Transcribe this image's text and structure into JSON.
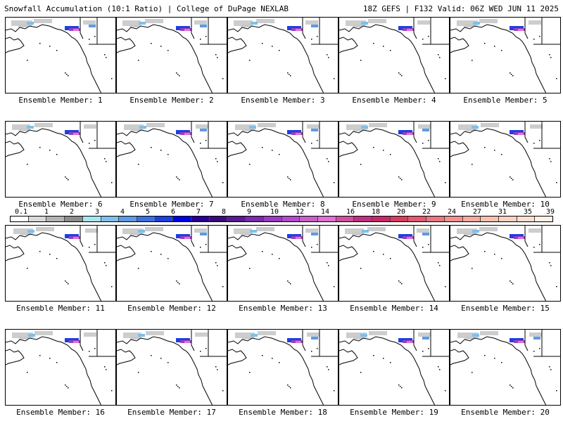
{
  "header": {
    "title_left": "Snowfall Accumulation (10:1 Ratio) | College of DuPage NEXLAB",
    "title_right": "18Z GEFS | F132 Valid: 06Z WED JUN 11 2025"
  },
  "panels": [
    {
      "label": "Ensemble Member: 1"
    },
    {
      "label": "Ensemble Member: 2"
    },
    {
      "label": "Ensemble Member: 3"
    },
    {
      "label": "Ensemble Member: 4"
    },
    {
      "label": "Ensemble Member: 5"
    },
    {
      "label": "Ensemble Member: 6"
    },
    {
      "label": "Ensemble Member: 7"
    },
    {
      "label": "Ensemble Member: 8"
    },
    {
      "label": "Ensemble Member: 9"
    },
    {
      "label": "Ensemble Member: 10"
    },
    {
      "label": "Ensemble Member: 11"
    },
    {
      "label": "Ensemble Member: 12"
    },
    {
      "label": "Ensemble Member: 13"
    },
    {
      "label": "Ensemble Member: 14"
    },
    {
      "label": "Ensemble Member: 15"
    },
    {
      "label": "Ensemble Member: 16"
    },
    {
      "label": "Ensemble Member: 17"
    },
    {
      "label": "Ensemble Member: 18"
    },
    {
      "label": "Ensemble Member: 19"
    },
    {
      "label": "Ensemble Member: 20"
    }
  ],
  "legend": {
    "labels": [
      "0.1",
      "1",
      "2",
      "3",
      "4",
      "5",
      "6",
      "7",
      "8",
      "9",
      "10",
      "12",
      "14",
      "16",
      "18",
      "20",
      "22",
      "24",
      "27",
      "31",
      "35",
      "39"
    ],
    "colors": [
      "#ffffff",
      "#d9d9d9",
      "#b3b3b3",
      "#8c8c8c",
      "#a6e6f2",
      "#7fbfea",
      "#5b9be6",
      "#3c6fe0",
      "#1f3fe0",
      "#0000e6",
      "#2a0090",
      "#3c0a78",
      "#5a1a90",
      "#7a2aaa",
      "#9a3cc0",
      "#b24ccc",
      "#c860c8",
      "#e070d2",
      "#d050a0",
      "#c03080",
      "#c82868",
      "#d83c60",
      "#e05a70",
      "#e87880",
      "#f09090",
      "#f4aaa0",
      "#f8c0b0",
      "#fad2c0",
      "#fce0d0",
      "#fff0e6"
    ]
  }
}
